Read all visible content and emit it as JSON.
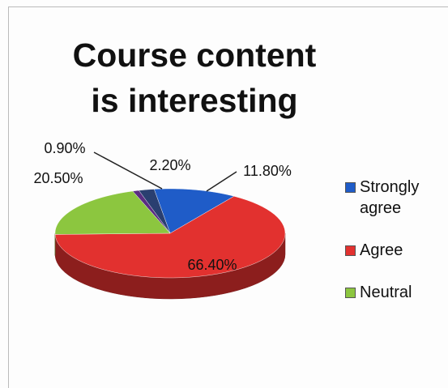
{
  "chart_data": {
    "type": "pie",
    "title": "Course content is interesting",
    "categories": [
      "Strongly agree",
      "Agree",
      "Neutral",
      null,
      null
    ],
    "values": [
      11.8,
      66.4,
      20.5,
      0.9,
      2.2
    ],
    "value_labels": [
      "11.80%",
      "66.40%",
      "20.50%",
      "0.90%",
      "2.20%"
    ],
    "colors": [
      "#1f5cc8",
      "#e2312f",
      "#8cc63f",
      "#5a2d82",
      "#2a3f70"
    ],
    "legend": "right"
  }
}
